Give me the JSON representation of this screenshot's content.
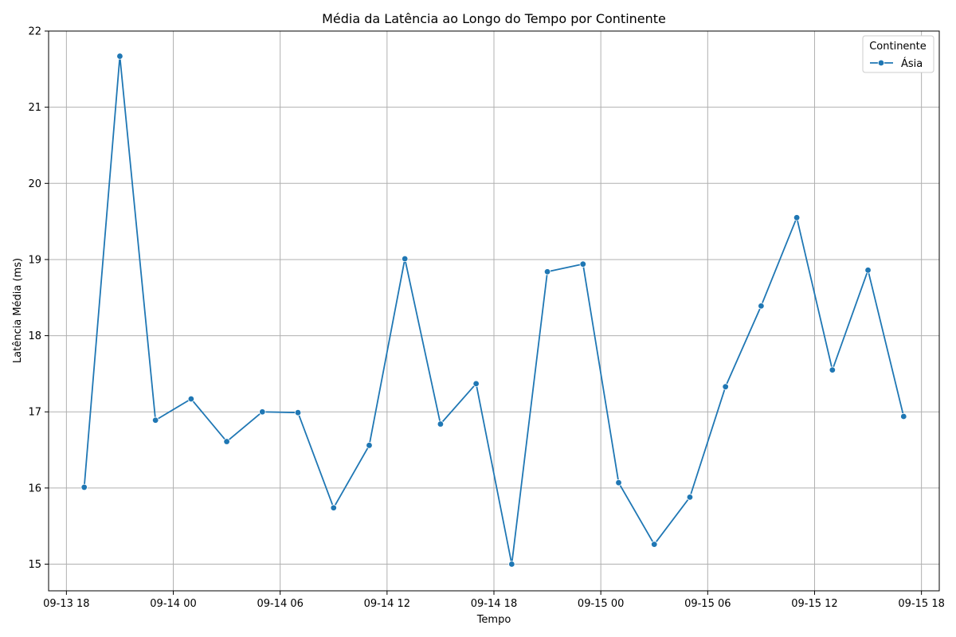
{
  "chart_data": {
    "type": "line",
    "title": "Média da Latência ao Longo do Tempo por Continente",
    "xlabel": "Tempo",
    "ylabel": "Latência Média (ms)",
    "xlim": [
      "2024-09-13T17:00",
      "2024-09-15T19:00"
    ],
    "ylim": [
      14.65,
      22.0
    ],
    "x_ticks": [
      {
        "value": "2024-09-13T18:00",
        "label": "09-13 18"
      },
      {
        "value": "2024-09-14T00:00",
        "label": "09-14 00"
      },
      {
        "value": "2024-09-14T06:00",
        "label": "09-14 06"
      },
      {
        "value": "2024-09-14T12:00",
        "label": "09-14 12"
      },
      {
        "value": "2024-09-14T18:00",
        "label": "09-14 18"
      },
      {
        "value": "2024-09-15T00:00",
        "label": "09-15 00"
      },
      {
        "value": "2024-09-15T06:00",
        "label": "09-15 06"
      },
      {
        "value": "2024-09-15T12:00",
        "label": "09-15 12"
      },
      {
        "value": "2024-09-15T18:00",
        "label": "09-15 18"
      }
    ],
    "y_ticks": [
      15,
      16,
      17,
      18,
      19,
      20,
      21,
      22
    ],
    "grid": true,
    "legend": {
      "title": "Continente",
      "placement": "top-right"
    },
    "series": [
      {
        "name": "Ásia",
        "color": "#1f77b4",
        "marker": "circle",
        "points": [
          {
            "x": "2024-09-13T19:00",
            "y": 16.01
          },
          {
            "x": "2024-09-13T21:00",
            "y": 21.67
          },
          {
            "x": "2024-09-13T23:00",
            "y": 16.89
          },
          {
            "x": "2024-09-14T01:00",
            "y": 17.17
          },
          {
            "x": "2024-09-14T03:00",
            "y": 16.61
          },
          {
            "x": "2024-09-14T05:00",
            "y": 17.0
          },
          {
            "x": "2024-09-14T07:00",
            "y": 16.99
          },
          {
            "x": "2024-09-14T09:00",
            "y": 15.74
          },
          {
            "x": "2024-09-14T11:00",
            "y": 16.56
          },
          {
            "x": "2024-09-14T13:00",
            "y": 19.01
          },
          {
            "x": "2024-09-14T15:00",
            "y": 16.84
          },
          {
            "x": "2024-09-14T17:00",
            "y": 17.37
          },
          {
            "x": "2024-09-14T19:00",
            "y": 15.0
          },
          {
            "x": "2024-09-14T21:00",
            "y": 18.84
          },
          {
            "x": "2024-09-14T23:00",
            "y": 18.94
          },
          {
            "x": "2024-09-15T01:00",
            "y": 16.07
          },
          {
            "x": "2024-09-15T03:00",
            "y": 15.26
          },
          {
            "x": "2024-09-15T05:00",
            "y": 15.88
          },
          {
            "x": "2024-09-15T07:00",
            "y": 17.33
          },
          {
            "x": "2024-09-15T09:00",
            "y": 18.39
          },
          {
            "x": "2024-09-15T11:00",
            "y": 19.55
          },
          {
            "x": "2024-09-15T13:00",
            "y": 17.55
          },
          {
            "x": "2024-09-15T15:00",
            "y": 18.86
          },
          {
            "x": "2024-09-15T17:00",
            "y": 16.94
          }
        ]
      }
    ]
  }
}
